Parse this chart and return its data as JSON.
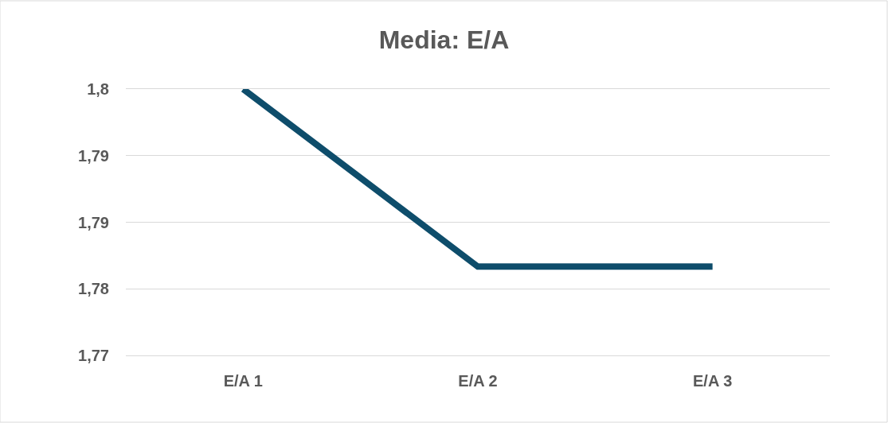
{
  "chart_data": {
    "type": "line",
    "title": "Media: E/A",
    "categories": [
      "E/A 1",
      "E/A 2",
      "E/A 3"
    ],
    "series": [
      {
        "color": "#0e4d6b",
        "values": [
          1.8,
          1.78,
          1.78
        ]
      }
    ],
    "ylim": [
      1.77,
      1.8
    ],
    "yticks": [
      {
        "value": 1.77,
        "label": "1,77"
      },
      {
        "value": 1.7775,
        "label": "1,78"
      },
      {
        "value": 1.785,
        "label": "1,79"
      },
      {
        "value": 1.7925,
        "label": "1,79"
      },
      {
        "value": 1.8,
        "label": "1,8"
      }
    ],
    "grid": "y",
    "marker": "none",
    "line_style": "solid"
  }
}
